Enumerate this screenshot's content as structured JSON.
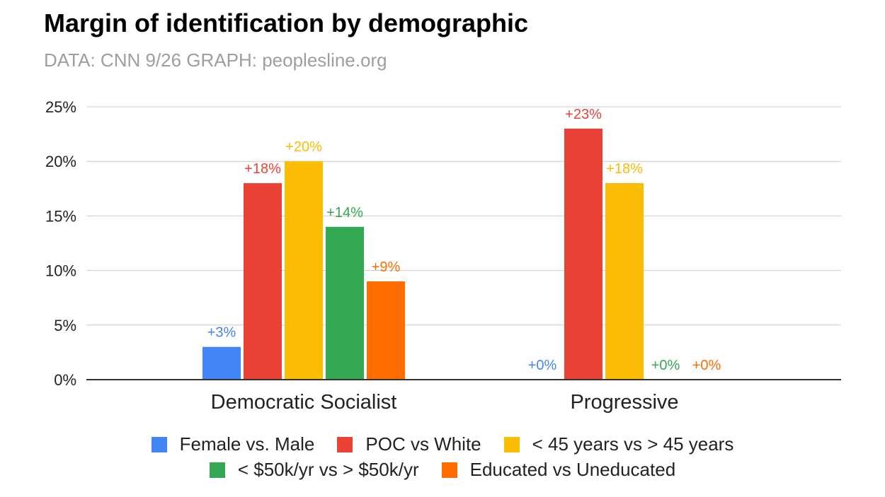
{
  "chart_data": {
    "type": "bar",
    "title": "Margin of identification by demographic",
    "subtitle": "DATA: CNN 9/26  GRAPH: peoplesline.org",
    "categories": [
      "Democratic Socialist",
      "Progressive"
    ],
    "series": [
      {
        "name": "Female vs. Male",
        "color": "#4285f4",
        "values": [
          3,
          0
        ],
        "labels": [
          "+3%",
          "+0%"
        ]
      },
      {
        "name": "POC vs White",
        "color": "#ea4335",
        "values": [
          18,
          23
        ],
        "labels": [
          "+18%",
          "+23%"
        ]
      },
      {
        "name": "< 45 years vs > 45 years",
        "color": "#fbbc04",
        "values": [
          20,
          18
        ],
        "labels": [
          "+20%",
          "+18%"
        ]
      },
      {
        "name": "< $50k/yr vs > $50k/yr",
        "color": "#34a853",
        "values": [
          14,
          0
        ],
        "labels": [
          "+14%",
          "+0%"
        ]
      },
      {
        "name": "Educated vs Uneducated",
        "color": "#ff6d01",
        "values": [
          9,
          0
        ],
        "labels": [
          "+9%",
          "+0%"
        ]
      }
    ],
    "yticks": [
      "0%",
      "5%",
      "10%",
      "15%",
      "20%",
      "25%"
    ],
    "ylim": [
      0,
      25
    ],
    "xlabel": "",
    "ylabel": "",
    "grid": true,
    "legend_position": "bottom"
  }
}
